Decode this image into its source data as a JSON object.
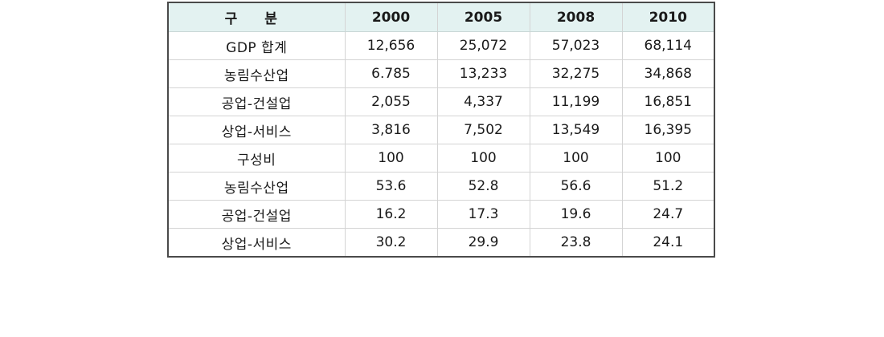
{
  "table": {
    "header": {
      "label": "구 분",
      "years": [
        "2000",
        "2005",
        "2008",
        "2010"
      ]
    },
    "rows": [
      {
        "label": "GDP 합계",
        "values": [
          "12,656",
          "25,072",
          "57,023",
          "68,114"
        ]
      },
      {
        "label": "농림수산업",
        "values": [
          "6.785",
          "13,233",
          "32,275",
          "34,868"
        ]
      },
      {
        "label": "공업-건설업",
        "values": [
          "2,055",
          "4,337",
          "11,199",
          "16,851"
        ]
      },
      {
        "label": "상업-서비스",
        "values": [
          "3,816",
          "7,502",
          "13,549",
          "16,395"
        ]
      },
      {
        "label": "구성비",
        "values": [
          "100",
          "100",
          "100",
          "100"
        ]
      },
      {
        "label": "농림수산업",
        "values": [
          "53.6",
          "52.8",
          "56.6",
          "51.2"
        ]
      },
      {
        "label": "공업-건설업",
        "values": [
          "16.2",
          "17.3",
          "19.6",
          "24.7"
        ]
      },
      {
        "label": "상업-서비스",
        "values": [
          "30.2",
          "29.9",
          "23.8",
          "24.1"
        ]
      }
    ]
  },
  "colors": {
    "header_background": "#e3f2f1",
    "outer_border": "#4a4a4a",
    "grid_line": "#d4d4d4"
  }
}
